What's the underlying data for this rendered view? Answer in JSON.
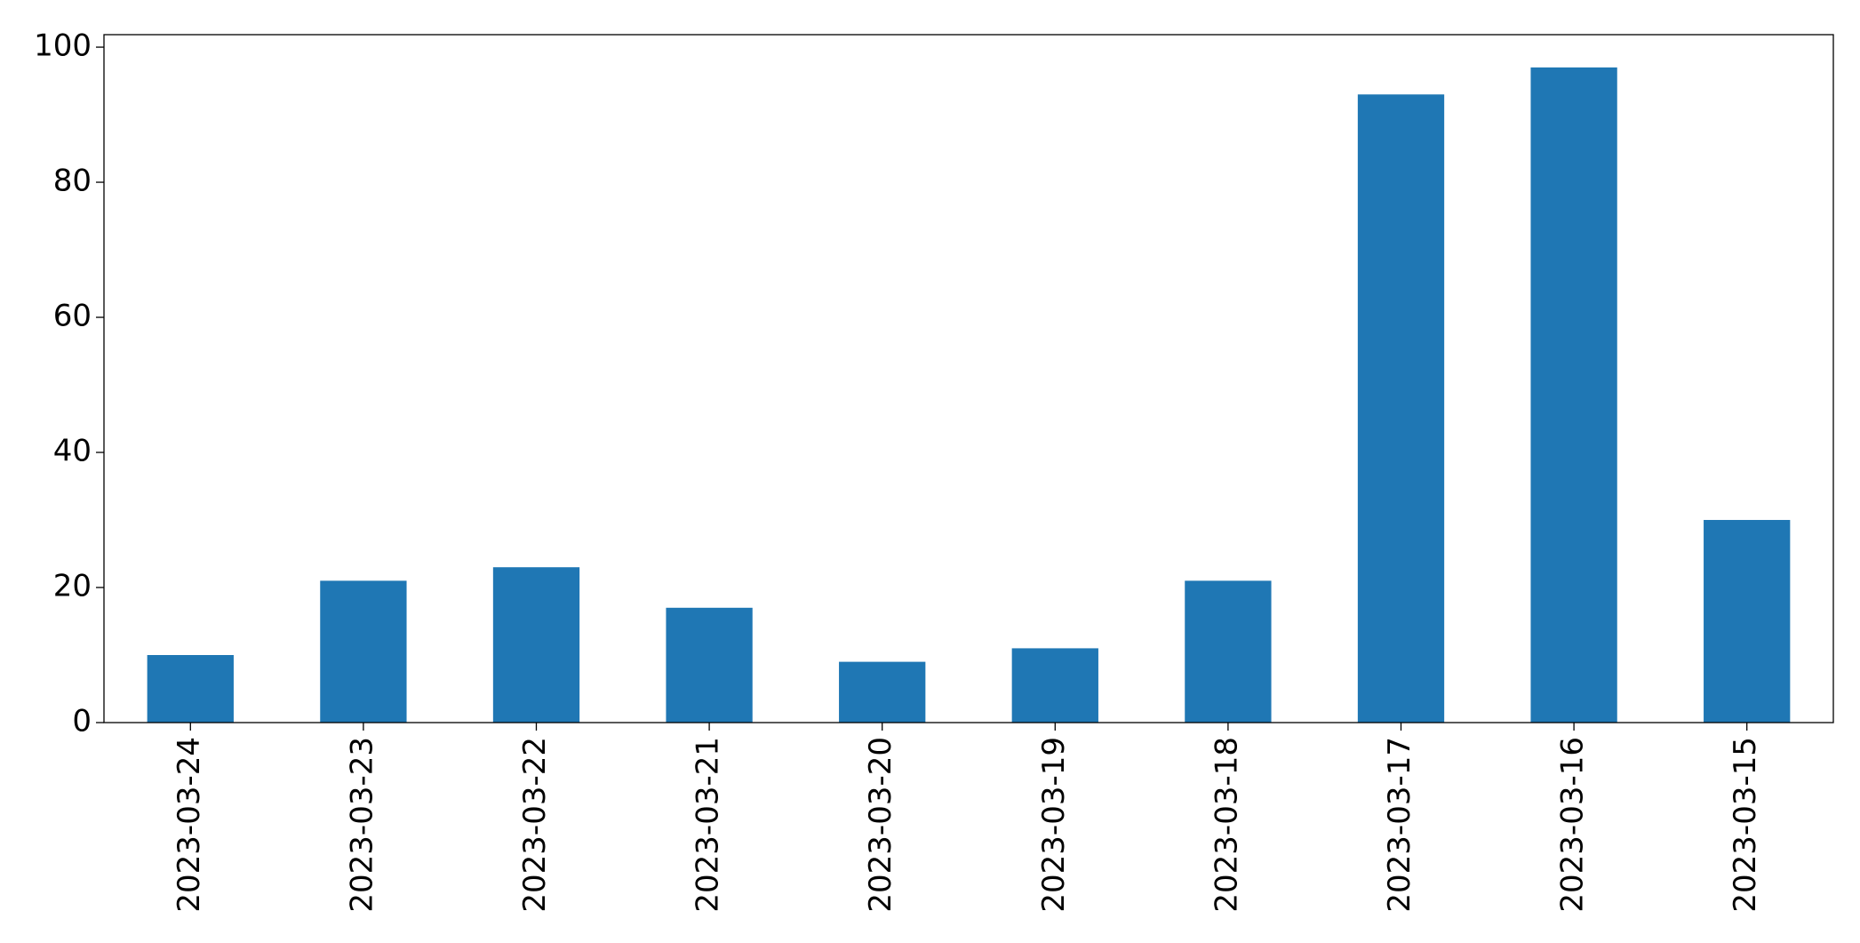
{
  "chart_data": {
    "type": "bar",
    "categories": [
      "2023-03-24",
      "2023-03-23",
      "2023-03-22",
      "2023-03-21",
      "2023-03-20",
      "2023-03-19",
      "2023-03-18",
      "2023-03-17",
      "2023-03-16",
      "2023-03-15"
    ],
    "values": [
      10,
      21,
      23,
      17,
      9,
      11,
      21,
      93,
      97,
      30
    ],
    "color": "#1f77b4",
    "ylim": [
      0,
      101.85
    ],
    "yticks": [
      0,
      20,
      40,
      60,
      80,
      100
    ],
    "grid": false
  }
}
